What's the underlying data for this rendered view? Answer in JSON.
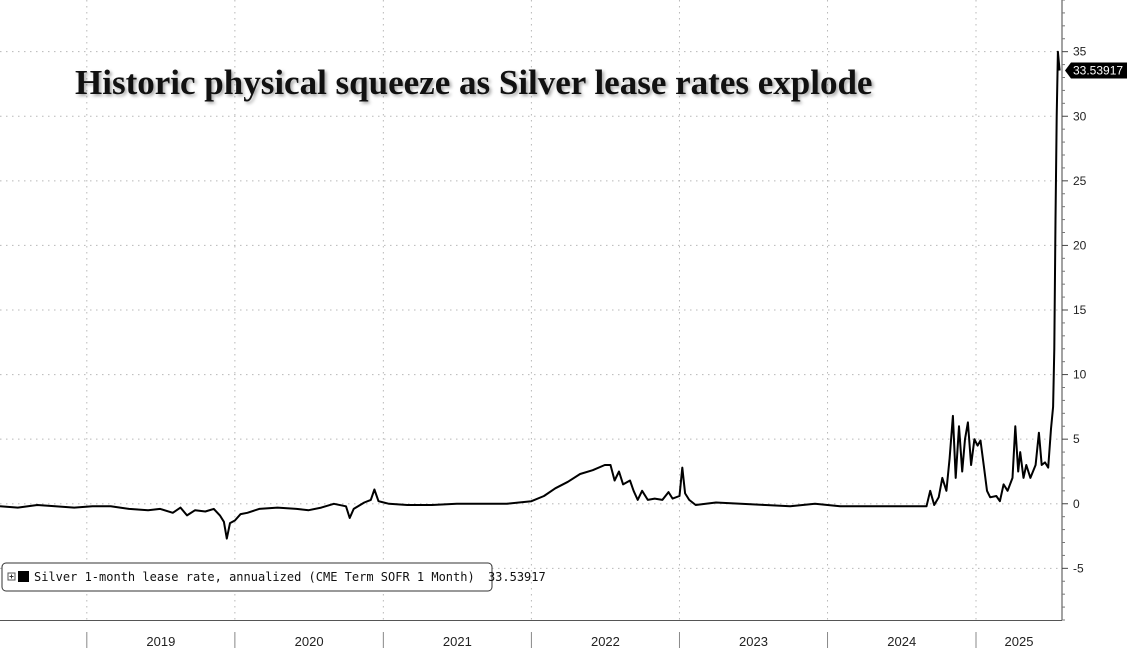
{
  "chart_data": {
    "type": "line",
    "title": "Historic physical squeeze as Silver lease rates explode",
    "xlabel": "",
    "ylabel": "",
    "ylim": [
      -9,
      39
    ],
    "y_ticks": [
      -5,
      0,
      5,
      10,
      15,
      20,
      25,
      30,
      35
    ],
    "x_tick_labels": [
      "2019",
      "2020",
      "2021",
      "2022",
      "2023",
      "2024",
      "2025"
    ],
    "grid": true,
    "legend_position": "bottom-left",
    "last_value_label": "33.53917",
    "line_color": "#000000",
    "series": [
      {
        "name": "Silver 1-month lease rate, annualized (CME Term SOFR 1 Month)",
        "legend_value": "33.53917",
        "points": [
          [
            "2018-06-01",
            -0.2
          ],
          [
            "2018-07-15",
            -0.3
          ],
          [
            "2018-09-01",
            -0.1
          ],
          [
            "2018-10-15",
            -0.2
          ],
          [
            "2018-12-01",
            -0.3
          ],
          [
            "2019-01-15",
            -0.2
          ],
          [
            "2019-03-01",
            -0.2
          ],
          [
            "2019-04-15",
            -0.4
          ],
          [
            "2019-06-01",
            -0.5
          ],
          [
            "2019-07-01",
            -0.4
          ],
          [
            "2019-08-01",
            -0.7
          ],
          [
            "2019-08-20",
            -0.3
          ],
          [
            "2019-09-05",
            -0.9
          ],
          [
            "2019-09-25",
            -0.5
          ],
          [
            "2019-10-20",
            -0.6
          ],
          [
            "2019-11-10",
            -0.4
          ],
          [
            "2019-11-25",
            -0.9
          ],
          [
            "2019-12-05",
            -1.4
          ],
          [
            "2019-12-12",
            -2.7
          ],
          [
            "2019-12-20",
            -1.5
          ],
          [
            "2020-01-01",
            -1.3
          ],
          [
            "2020-01-15",
            -0.8
          ],
          [
            "2020-02-01",
            -0.7
          ],
          [
            "2020-03-01",
            -0.4
          ],
          [
            "2020-04-15",
            -0.3
          ],
          [
            "2020-06-01",
            -0.4
          ],
          [
            "2020-07-01",
            -0.5
          ],
          [
            "2020-08-01",
            -0.3
          ],
          [
            "2020-09-01",
            0.0
          ],
          [
            "2020-10-01",
            -0.2
          ],
          [
            "2020-10-10",
            -1.1
          ],
          [
            "2020-10-20",
            -0.4
          ],
          [
            "2020-11-15",
            0.1
          ],
          [
            "2020-12-01",
            0.3
          ],
          [
            "2020-12-10",
            1.1
          ],
          [
            "2020-12-20",
            0.2
          ],
          [
            "2021-01-15",
            0.0
          ],
          [
            "2021-03-01",
            -0.1
          ],
          [
            "2021-05-01",
            -0.1
          ],
          [
            "2021-07-01",
            0.0
          ],
          [
            "2021-09-01",
            0.0
          ],
          [
            "2021-11-01",
            0.0
          ],
          [
            "2022-01-01",
            0.2
          ],
          [
            "2022-02-01",
            0.6
          ],
          [
            "2022-03-01",
            1.2
          ],
          [
            "2022-04-01",
            1.7
          ],
          [
            "2022-05-01",
            2.3
          ],
          [
            "2022-06-01",
            2.6
          ],
          [
            "2022-07-01",
            3.0
          ],
          [
            "2022-07-15",
            3.0
          ],
          [
            "2022-07-25",
            1.8
          ],
          [
            "2022-08-05",
            2.5
          ],
          [
            "2022-08-15",
            1.5
          ],
          [
            "2022-09-01",
            1.8
          ],
          [
            "2022-09-10",
            1.0
          ],
          [
            "2022-09-20",
            0.3
          ],
          [
            "2022-10-01",
            1.0
          ],
          [
            "2022-10-15",
            0.3
          ],
          [
            "2022-11-01",
            0.4
          ],
          [
            "2022-11-20",
            0.3
          ],
          [
            "2022-12-05",
            0.9
          ],
          [
            "2022-12-15",
            0.4
          ],
          [
            "2023-01-01",
            0.6
          ],
          [
            "2023-01-08",
            2.8
          ],
          [
            "2023-01-15",
            0.8
          ],
          [
            "2023-01-25",
            0.3
          ],
          [
            "2023-02-10",
            -0.1
          ],
          [
            "2023-04-01",
            0.1
          ],
          [
            "2023-06-01",
            0.0
          ],
          [
            "2023-08-01",
            -0.1
          ],
          [
            "2023-10-01",
            -0.2
          ],
          [
            "2023-12-01",
            0.0
          ],
          [
            "2024-02-01",
            -0.2
          ],
          [
            "2024-04-01",
            -0.2
          ],
          [
            "2024-06-01",
            -0.2
          ],
          [
            "2024-08-01",
            -0.2
          ],
          [
            "2024-09-01",
            -0.2
          ],
          [
            "2024-09-10",
            1.0
          ],
          [
            "2024-09-20",
            -0.1
          ],
          [
            "2024-10-01",
            0.5
          ],
          [
            "2024-10-10",
            2.0
          ],
          [
            "2024-10-20",
            1.0
          ],
          [
            "2024-10-28",
            3.5
          ],
          [
            "2024-11-05",
            6.8
          ],
          [
            "2024-11-12",
            2.0
          ],
          [
            "2024-11-20",
            6.0
          ],
          [
            "2024-11-28",
            2.5
          ],
          [
            "2024-12-05",
            5.0
          ],
          [
            "2024-12-12",
            6.3
          ],
          [
            "2024-12-20",
            3.0
          ],
          [
            "2024-12-28",
            5.0
          ],
          [
            "2025-01-05",
            4.5
          ],
          [
            "2025-01-12",
            4.9
          ],
          [
            "2025-01-20",
            3.0
          ],
          [
            "2025-01-28",
            1.0
          ],
          [
            "2025-02-05",
            0.5
          ],
          [
            "2025-02-20",
            0.6
          ],
          [
            "2025-03-01",
            0.2
          ],
          [
            "2025-03-10",
            1.5
          ],
          [
            "2025-03-20",
            1.0
          ],
          [
            "2025-04-01",
            2.0
          ],
          [
            "2025-04-08",
            6.0
          ],
          [
            "2025-04-15",
            2.5
          ],
          [
            "2025-04-20",
            4.0
          ],
          [
            "2025-04-28",
            2.0
          ],
          [
            "2025-05-05",
            3.0
          ],
          [
            "2025-05-15",
            2.0
          ],
          [
            "2025-05-28",
            3.0
          ],
          [
            "2025-06-05",
            5.5
          ],
          [
            "2025-06-12",
            3.0
          ],
          [
            "2025-06-20",
            3.2
          ],
          [
            "2025-06-28",
            2.8
          ],
          [
            "2025-07-05",
            5.8
          ],
          [
            "2025-07-10",
            7.5
          ],
          [
            "2025-07-13",
            12.0
          ],
          [
            "2025-07-16",
            22.0
          ],
          [
            "2025-07-19",
            30.0
          ],
          [
            "2025-07-22",
            35.0
          ],
          [
            "2025-07-26",
            33.53917
          ]
        ]
      }
    ]
  }
}
